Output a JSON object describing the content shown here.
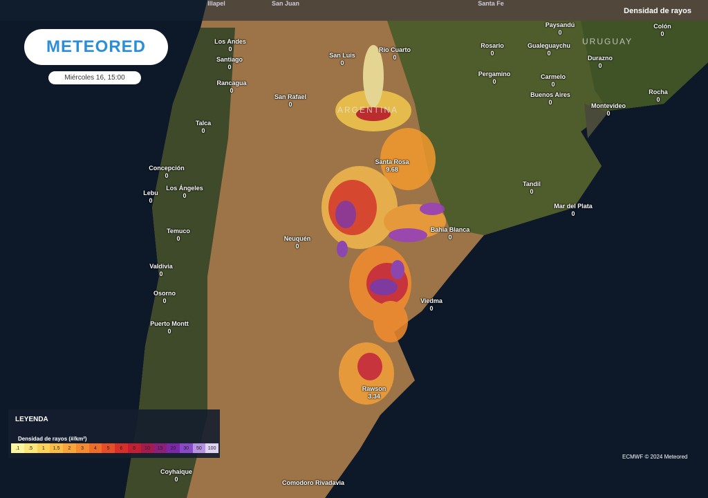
{
  "header": {
    "logo": "METEORED",
    "datetime": "Miércoles 16, 15:00",
    "layer": "Densidad de rayos",
    "top_places": [
      "Illapel",
      "San Juan",
      "Santa Fe"
    ]
  },
  "regions": [
    "ARGENTINA",
    "URUGUAY"
  ],
  "cities": [
    {
      "name": "Los Andes",
      "value": 0
    },
    {
      "name": "Santiago",
      "value": 0
    },
    {
      "name": "Rancagua",
      "value": 0
    },
    {
      "name": "San Luis",
      "value": 0
    },
    {
      "name": "Rio Cuarto",
      "value": 0
    },
    {
      "name": "San Rafael",
      "value": 0
    },
    {
      "name": "Rosario",
      "value": 0
    },
    {
      "name": "Paysandú",
      "value": 0
    },
    {
      "name": "Colón",
      "value": 0
    },
    {
      "name": "Gualeguaychu",
      "value": 0
    },
    {
      "name": "Durazno",
      "value": 0
    },
    {
      "name": "Pergamino",
      "value": 0
    },
    {
      "name": "Carmelo",
      "value": 0
    },
    {
      "name": "Buenos Aires",
      "value": 0
    },
    {
      "name": "Rocha",
      "value": 0
    },
    {
      "name": "Montevideo",
      "value": 0
    },
    {
      "name": "Talca",
      "value": 0
    },
    {
      "name": "Santa Rosa",
      "value": 9.68
    },
    {
      "name": "Concepción",
      "value": 0
    },
    {
      "name": "Los Ángeles",
      "value": 0
    },
    {
      "name": "Lebu",
      "value": 0
    },
    {
      "name": "Tandil",
      "value": 0
    },
    {
      "name": "Mar del Plata",
      "value": 0
    },
    {
      "name": "Temuco",
      "value": 0
    },
    {
      "name": "Bahía Blanca",
      "value": 0
    },
    {
      "name": "Neuquén",
      "value": 0
    },
    {
      "name": "Valdivia",
      "value": 0
    },
    {
      "name": "Osorno",
      "value": 0
    },
    {
      "name": "Viedma",
      "value": 0
    },
    {
      "name": "Puerto Montt",
      "value": 0
    },
    {
      "name": "Rawson",
      "value": 3.34
    },
    {
      "name": "Coyhaique",
      "value": 0
    },
    {
      "name": "Comodoro Rivadavia"
    }
  ],
  "legend": {
    "title": "LEYENDA",
    "subtitle": "Densidad de rayos (#/km²)",
    "labels": [
      ".1",
      ".5",
      "1",
      "1.5",
      "2",
      "3",
      "4",
      "5",
      "6",
      "8",
      "10",
      "15",
      "20",
      "30",
      "50",
      "100"
    ]
  },
  "credit": "ECMWF © 2024 Meteored"
}
